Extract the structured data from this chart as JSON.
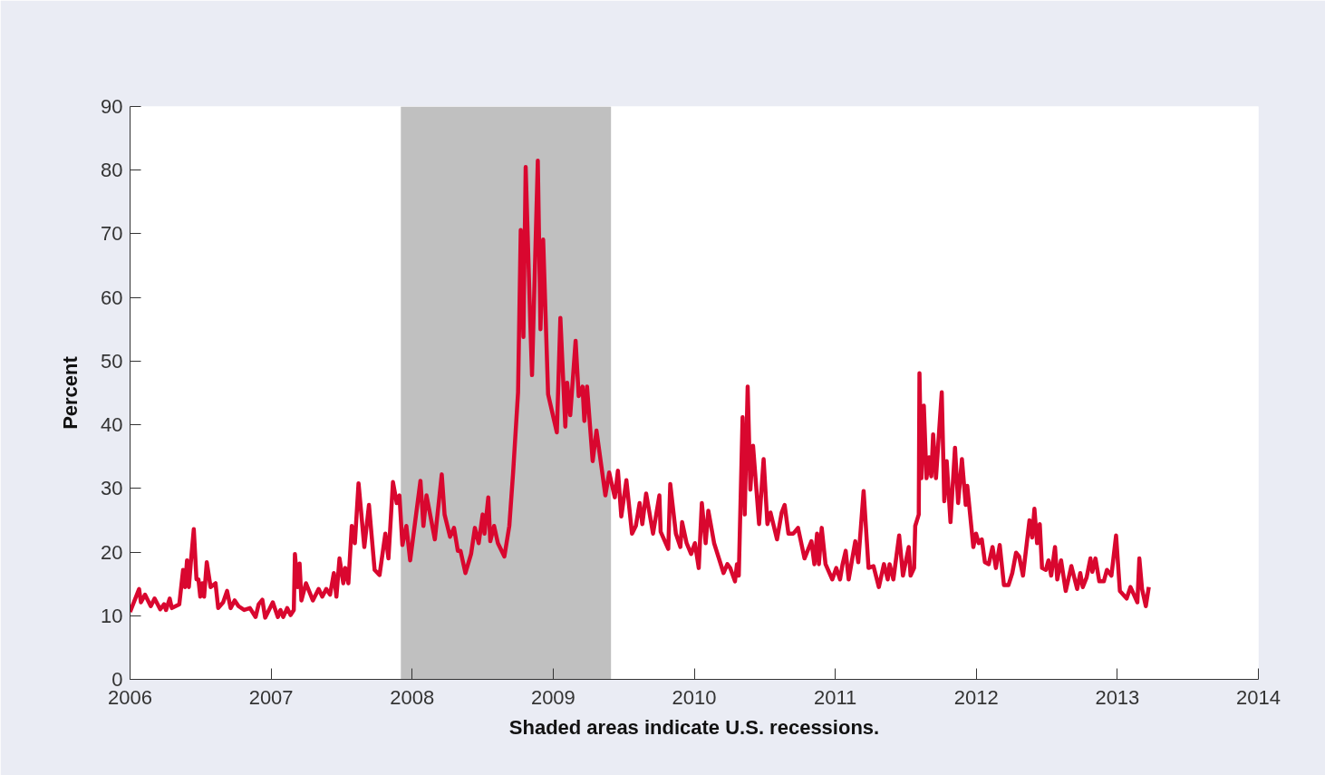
{
  "chart_data": {
    "type": "line",
    "xlabel": "Shaded areas indicate U.S. recessions.",
    "ylabel": "Percent",
    "xlim": [
      2006,
      2014
    ],
    "xticks": [
      2006,
      2007,
      2008,
      2009,
      2010,
      2011,
      2012,
      2013,
      2014
    ],
    "ylim": [
      0,
      90
    ],
    "yticks": [
      0,
      10,
      20,
      30,
      40,
      50,
      60,
      70,
      80,
      90
    ],
    "grid": false,
    "marker": "none",
    "line_style": "solid",
    "bands": [
      {
        "axis": "x",
        "from": 2007.92,
        "to": 2009.41,
        "color": "#c0c0c0"
      }
    ],
    "series": [
      {
        "color": "#d9072f",
        "x": [
          2006.0,
          2006.064,
          2006.077,
          2006.106,
          2006.147,
          2006.174,
          2006.214,
          2006.241,
          2006.255,
          2006.281,
          2006.296,
          2006.349,
          2006.376,
          2006.39,
          2006.404,
          2006.417,
          2006.431,
          2006.452,
          2006.471,
          2006.485,
          2006.498,
          2006.512,
          2006.525,
          2006.544,
          2006.571,
          2006.606,
          2006.625,
          2006.66,
          2006.688,
          2006.713,
          2006.742,
          2006.769,
          2006.809,
          2006.85,
          2006.89,
          2006.912,
          2006.938,
          2006.958,
          2007.012,
          2007.048,
          2007.066,
          2007.086,
          2007.114,
          2007.138,
          2007.161,
          2007.169,
          2007.188,
          2007.202,
          2007.215,
          2007.247,
          2007.296,
          2007.337,
          2007.363,
          2007.391,
          2007.418,
          2007.445,
          2007.463,
          2007.485,
          2007.512,
          2007.526,
          2007.548,
          2007.572,
          2007.594,
          2007.62,
          2007.661,
          2007.694,
          2007.734,
          2007.769,
          2007.81,
          2007.832,
          2007.864,
          2007.891,
          2007.91,
          2007.931,
          2007.959,
          2007.986,
          2008.021,
          2008.059,
          2008.08,
          2008.102,
          2008.161,
          2008.21,
          2008.23,
          2008.269,
          2008.297,
          2008.324,
          2008.343,
          2008.378,
          2008.418,
          2008.445,
          2008.472,
          2008.5,
          2008.513,
          2008.54,
          2008.554,
          2008.581,
          2008.608,
          2008.654,
          2008.689,
          2008.716,
          2008.751,
          2008.77,
          2008.789,
          2008.805,
          2008.837,
          2008.85,
          2008.891,
          2008.91,
          2008.929,
          2008.964,
          2009.026,
          2009.051,
          2009.086,
          2009.099,
          2009.121,
          2009.159,
          2009.181,
          2009.208,
          2009.221,
          2009.24,
          2009.28,
          2009.307,
          2009.37,
          2009.397,
          2009.437,
          2009.459,
          2009.483,
          2009.519,
          2009.559,
          2009.586,
          2009.613,
          2009.632,
          2009.659,
          2009.708,
          2009.753,
          2009.762,
          2009.816,
          2009.83,
          2009.87,
          2009.902,
          2009.914,
          2009.946,
          2009.978,
          2010.005,
          2010.032,
          2010.054,
          2010.081,
          2010.1,
          2010.141,
          2010.208,
          2010.235,
          2010.255,
          2010.289,
          2010.303,
          2010.316,
          2010.343,
          2010.358,
          2010.379,
          2010.398,
          2010.417,
          2010.46,
          2010.492,
          2010.519,
          2010.541,
          2010.587,
          2010.62,
          2010.641,
          2010.668,
          2010.703,
          2010.736,
          2010.782,
          2010.831,
          2010.852,
          2010.871,
          2010.884,
          2010.904,
          2010.931,
          2010.979,
          2011.007,
          2011.034,
          2011.052,
          2011.074,
          2011.095,
          2011.142,
          2011.163,
          2011.201,
          2011.236,
          2011.271,
          2011.309,
          2011.345,
          2011.372,
          2011.385,
          2011.412,
          2011.453,
          2011.48,
          2011.521,
          2011.534,
          2011.559,
          2011.567,
          2011.592,
          2011.597,
          2011.611,
          2011.628,
          2011.647,
          2011.665,
          2011.681,
          2011.694,
          2011.714,
          2011.755,
          2011.773,
          2011.79,
          2011.817,
          2011.849,
          2011.871,
          2011.898,
          2011.925,
          2011.936,
          2011.979,
          2011.998,
          2012.017,
          2012.039,
          2012.061,
          2012.088,
          2012.115,
          2012.139,
          2012.166,
          2012.196,
          2012.228,
          2012.255,
          2012.282,
          2012.304,
          2012.331,
          2012.377,
          2012.396,
          2012.412,
          2012.431,
          2012.45,
          2012.466,
          2012.493,
          2012.512,
          2012.531,
          2012.558,
          2012.574,
          2012.601,
          2012.634,
          2012.674,
          2012.715,
          2012.737,
          2012.755,
          2012.782,
          2012.809,
          2012.823,
          2012.845,
          2012.872,
          2012.904,
          2012.926,
          2012.958,
          2012.991,
          2013.018,
          2013.066,
          2013.093,
          2013.142,
          2013.156,
          2013.175,
          2013.202,
          2013.223
        ],
        "values": [
          10.6,
          14.2,
          12.1,
          13.3,
          11.5,
          12.7,
          11,
          11.8,
          10.9,
          12.7,
          11.2,
          11.8,
          17.2,
          14.5,
          18.7,
          14.5,
          18.4,
          23.6,
          15.7,
          15.7,
          13,
          15.1,
          13,
          18.4,
          14.5,
          15.1,
          11.2,
          12.1,
          13.9,
          11.2,
          12.4,
          11.5,
          10.9,
          11.2,
          9.8,
          11.8,
          12.5,
          9.7,
          12.1,
          9.8,
          10.9,
          9.8,
          11.2,
          10.1,
          10.9,
          19.7,
          14.5,
          18.2,
          12.4,
          15.1,
          12.4,
          14.2,
          13,
          14.2,
          13.3,
          16.7,
          13,
          19,
          15.1,
          17.5,
          15.1,
          24.1,
          21.4,
          30.8,
          20.8,
          27.4,
          17.2,
          16.4,
          22.9,
          19,
          31,
          27.7,
          28.9,
          21.1,
          24.1,
          18.7,
          24.7,
          31.2,
          24.1,
          28.9,
          22,
          32.2,
          25.9,
          22.4,
          23.8,
          20.2,
          20.2,
          16.7,
          19.7,
          23.8,
          21.4,
          25.9,
          22.9,
          28.6,
          21.7,
          24.1,
          21.4,
          19.3,
          24.1,
          32.5,
          45.1,
          70.6,
          53.8,
          80.5,
          56.5,
          47.8,
          81.5,
          55,
          69.1,
          44.8,
          38.8,
          56.8,
          39.7,
          46.6,
          41.5,
          53.2,
          44.5,
          46,
          40.6,
          46,
          34.3,
          39.1,
          28.9,
          32.5,
          28.6,
          32.8,
          25.6,
          31.3,
          22.9,
          24.1,
          27.7,
          24.4,
          29.2,
          22.9,
          28.9,
          23.2,
          20.5,
          30.7,
          22.9,
          20.8,
          24.7,
          21.4,
          19.7,
          21.4,
          17.5,
          27.7,
          21.4,
          26.5,
          21.4,
          16.7,
          18.1,
          17.5,
          15.4,
          18.1,
          16.3,
          41.2,
          25.9,
          46,
          29.8,
          36.7,
          24.4,
          34.6,
          24.4,
          26.2,
          22,
          26.2,
          27.4,
          22.9,
          22.9,
          23.8,
          19,
          21.7,
          18.1,
          22.9,
          18.1,
          23.8,
          18.1,
          15.7,
          17.5,
          15.7,
          18.1,
          20.2,
          15.7,
          21.7,
          18.4,
          29.6,
          17.5,
          17.8,
          14.5,
          18.1,
          15.7,
          18.1,
          15.7,
          22.6,
          16.3,
          20.8,
          16.3,
          17.5,
          24.1,
          25.9,
          48.1,
          31.6,
          43,
          31.6,
          34.9,
          31.9,
          38.5,
          31.6,
          45.1,
          28,
          34.3,
          24.7,
          36.4,
          27.7,
          34.6,
          27.4,
          30.4,
          20.8,
          22.9,
          21.4,
          22,
          18.4,
          18.1,
          20.8,
          17.5,
          21.1,
          14.8,
          14.8,
          16.7,
          19.9,
          19.3,
          16.3,
          25,
          22.3,
          26.8,
          21.4,
          24.4,
          17.5,
          17.2,
          18.7,
          16.3,
          20.8,
          15.7,
          18.7,
          13.9,
          17.8,
          14.2,
          16.7,
          14.5,
          16,
          19,
          16.9,
          19,
          15.4,
          15.4,
          17.2,
          16.3,
          22.6,
          13.9,
          12.7,
          14.5,
          12.1,
          19,
          14.2,
          11.5,
          14.5
        ]
      }
    ]
  }
}
